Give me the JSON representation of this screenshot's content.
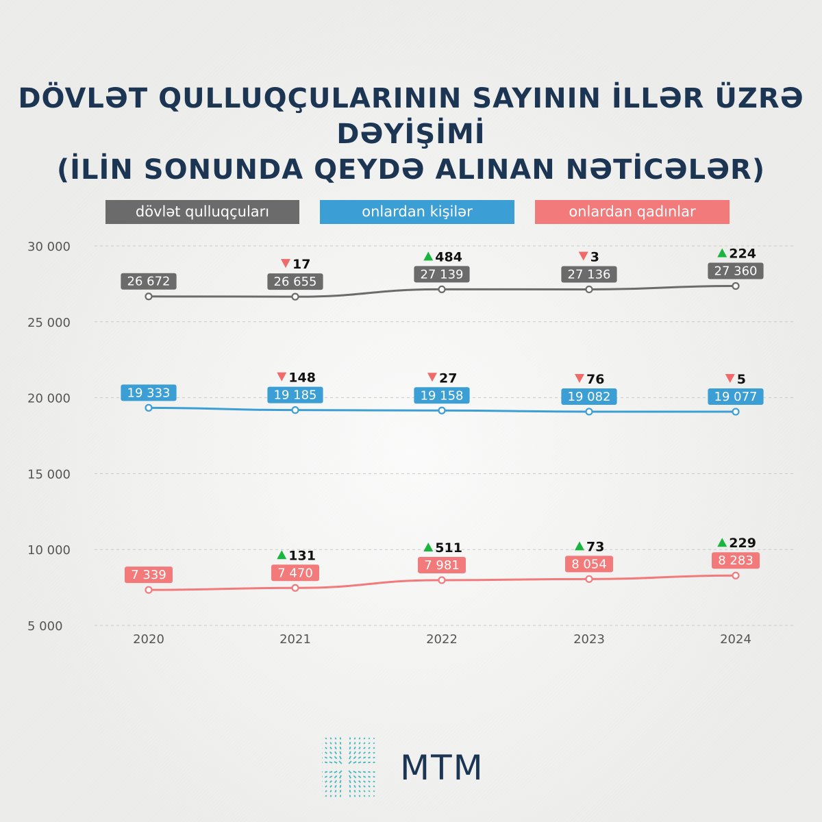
{
  "title": {
    "line1": "DÖVLƏT QULLUQÇULARININ SAYININ İLLƏR ÜZRƏ DƏYİŞİMİ",
    "line2": "(İLİN SONUNDA QEYDƏ ALINAN NƏTİCƏLƏR)"
  },
  "brand": {
    "name": "MTM",
    "color": "#1c3553",
    "icon": "starburst-grid-logo"
  },
  "colors": {
    "total": "#6b6b6b",
    "men": "#3b9fd6",
    "women": "#f37a7a",
    "up": "#19b53f",
    "down": "#f06a6a"
  },
  "chart_data": {
    "type": "line",
    "title": "DÖVLƏT QULLUQÇULARININ SAYININ İLLƏR ÜZRƏ DƏYİŞİMİ (İLİN SONUNDA QEYDƏ ALINAN NƏTİCƏLƏR)",
    "categories": [
      "2020",
      "2021",
      "2022",
      "2023",
      "2024"
    ],
    "ylim": [
      5000,
      30000
    ],
    "yticks": [
      30000,
      25000,
      20000,
      15000,
      10000,
      5000
    ],
    "ytick_labels": [
      "30 000",
      "25 000",
      "20 000",
      "15 000",
      "10 000",
      "5 000"
    ],
    "grid": "horizontal dashed",
    "legend_position": "top",
    "series": [
      {
        "name": "dövlət qulluqçuları",
        "key": "total",
        "values": [
          26672,
          26655,
          27139,
          27136,
          27360
        ],
        "labels": [
          "26 672",
          "26 655",
          "27 139",
          "27 136",
          "27 360"
        ],
        "changes": [
          null,
          "17",
          "484",
          "3",
          "224"
        ],
        "directions": [
          null,
          "down",
          "up",
          "down",
          "up"
        ]
      },
      {
        "name": "onlardan kişilər",
        "key": "men",
        "values": [
          19333,
          19185,
          19158,
          19082,
          19077
        ],
        "labels": [
          "19 333",
          "19 185",
          "19 158",
          "19 082",
          "19 077"
        ],
        "changes": [
          null,
          "148",
          "27",
          "76",
          "5"
        ],
        "directions": [
          null,
          "down",
          "down",
          "down",
          "down"
        ]
      },
      {
        "name": "onlardan qadınlar",
        "key": "women",
        "values": [
          7339,
          7470,
          7981,
          8054,
          8283
        ],
        "labels": [
          "7 339",
          "7 470",
          "7 981",
          "8 054",
          "8 283"
        ],
        "changes": [
          null,
          "131",
          "511",
          "73",
          "229"
        ],
        "directions": [
          null,
          "up",
          "up",
          "up",
          "up"
        ]
      }
    ]
  }
}
